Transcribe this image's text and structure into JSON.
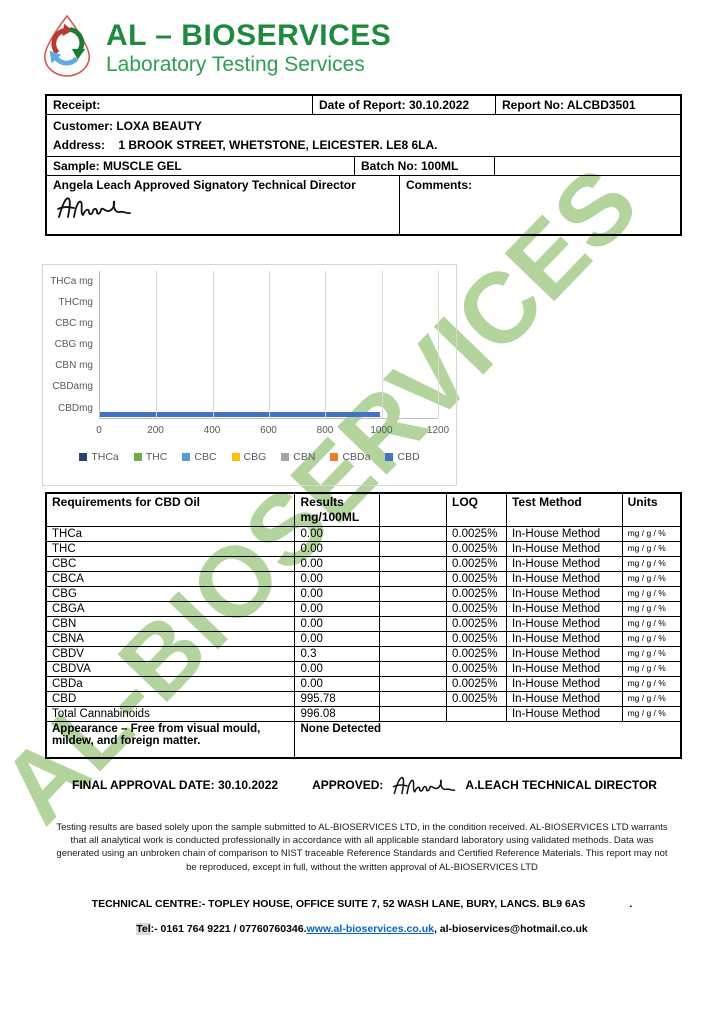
{
  "logo": {
    "title": "AL – BIOSERVICES",
    "subtitle": "Laboratory Testing Services",
    "title_color": "#1e8a3e"
  },
  "watermark_text": "AL-BIOSERVICES",
  "header_table": {
    "receipt": "Receipt:",
    "date_of_report": "Date of Report: 30.10.2022",
    "report_no": "Report No: ALCBD3501",
    "customer": "Customer: LOXA BEAUTY",
    "address": "Address:    1 BROOK STREET, WHETSTONE, LEICESTER. LE8 6LA.",
    "sample": "Sample: MUSCLE GEL",
    "batch_no": "Batch No: 100ML",
    "signatory": "Angela Leach Approved Signatory Technical Director",
    "comments": "Comments:"
  },
  "chart_data": {
    "type": "bar",
    "orientation": "horizontal",
    "categories": [
      "THCa mg",
      "THCmg",
      "CBC mg",
      "CBG mg",
      "CBN mg",
      "CBDamg",
      "CBDmg"
    ],
    "values": [
      0,
      0,
      0,
      0,
      0,
      0,
      995.78
    ],
    "bar_color": "#4472c4",
    "xlim": [
      0,
      1200
    ],
    "x_ticks": [
      0,
      200,
      400,
      600,
      800,
      1000,
      1200
    ],
    "grid": true,
    "legend_position": "bottom",
    "legend": [
      {
        "label": "THCa",
        "color": "#264478"
      },
      {
        "label": "THC",
        "color": "#70ad47"
      },
      {
        "label": "CBC",
        "color": "#5b9bd5"
      },
      {
        "label": "CBG",
        "color": "#ffc000"
      },
      {
        "label": "CBN",
        "color": "#a5a5a5"
      },
      {
        "label": "CBDa",
        "color": "#ed7d31"
      },
      {
        "label": "CBD",
        "color": "#4472c4"
      }
    ]
  },
  "results_table": {
    "headers": {
      "name": "Requirements for CBD Oil",
      "results_line1": "Results",
      "results_line2": "mg/100ML",
      "spacer": "",
      "loq": "LOQ",
      "method": "Test Method",
      "units": "Units"
    },
    "rows": [
      {
        "name": "THCa",
        "result": "0.00",
        "loq": "0.0025%",
        "method": "In-House Method",
        "units": "mg / g / %"
      },
      {
        "name": "THC",
        "result": "0.00",
        "loq": "0.0025%",
        "method": "In-House Method",
        "units": "mg / g / %"
      },
      {
        "name": "CBC",
        "result": "0.00",
        "loq": "0.0025%",
        "method": "In-House Method",
        "units": "mg / g / %"
      },
      {
        "name": "CBCA",
        "result": "0.00",
        "loq": "0.0025%",
        "method": "In-House Method",
        "units": "mg / g / %"
      },
      {
        "name": "CBG",
        "result": "0.00",
        "loq": "0.0025%",
        "method": "In-House Method",
        "units": "mg / g / %"
      },
      {
        "name": "CBGA",
        "result": "0.00",
        "loq": "0.0025%",
        "method": "In-House Method",
        "units": "mg / g / %"
      },
      {
        "name": "CBN",
        "result": "0.00",
        "loq": "0.0025%",
        "method": "In-House Method",
        "units": "mg / g / %"
      },
      {
        "name": "CBNA",
        "result": "0.00",
        "loq": "0.0025%",
        "method": "In-House Method",
        "units": "mg / g / %"
      },
      {
        "name": "CBDV",
        "result": "0.3",
        "loq": "0.0025%",
        "method": "In-House Method",
        "units": "mg / g / %"
      },
      {
        "name": "CBDVA",
        "result": "0.00",
        "loq": "0.0025%",
        "method": "In-House Method",
        "units": "mg / g / %"
      },
      {
        "name": "CBDa",
        "result": "0.00",
        "loq": "0.0025%",
        "method": "In-House Method",
        "units": "mg / g / %"
      },
      {
        "name": "CBD",
        "result": "995.78",
        "loq": "0.0025%",
        "method": "In-House Method",
        "units": "mg / g / %"
      },
      {
        "name": "Total Cannabinoids",
        "result": "996.08",
        "loq": "",
        "method": "In-House Method",
        "units": "mg / g / %"
      }
    ],
    "appearance_label": "Appearance – Free from visual mould, mildew, and foreign matter.",
    "appearance_value": "None Detected"
  },
  "approval": {
    "final_date": "FINAL APPROVAL DATE: 30.10.2022",
    "approved_label": "APPROVED:",
    "approver": "A.LEACH TECHNICAL DIRECTOR"
  },
  "disclaimer": "Testing results are based solely upon the sample submitted to AL-BIOSERVICES LTD, in the condition received. AL-BIOSERVICES LTD warrants that all analytical work is conducted professionally in accordance with all applicable standard laboratory using validated methods. Data was generated using an unbroken chain of comparison to NIST traceable Reference Standards and Certified Reference Materials. This report may not be reproduced, except in full, without the written approval of AL-BIOSERVICES LTD",
  "footer": {
    "technical_centre": "TECHNICAL CENTRE:- TOPLEY HOUSE, OFFICE SUITE 7, 52 WASH LANE, BURY, LANCS. BL9 6AS",
    "trailing_dot": ".",
    "tel_label": "Tel",
    "tel_rest": ":- 0161 764 9221 / 07760760346.",
    "website": "www.al-bioservices.co.uk",
    "email_suffix": ",  al-bioservices@hotmail.co.uk"
  }
}
